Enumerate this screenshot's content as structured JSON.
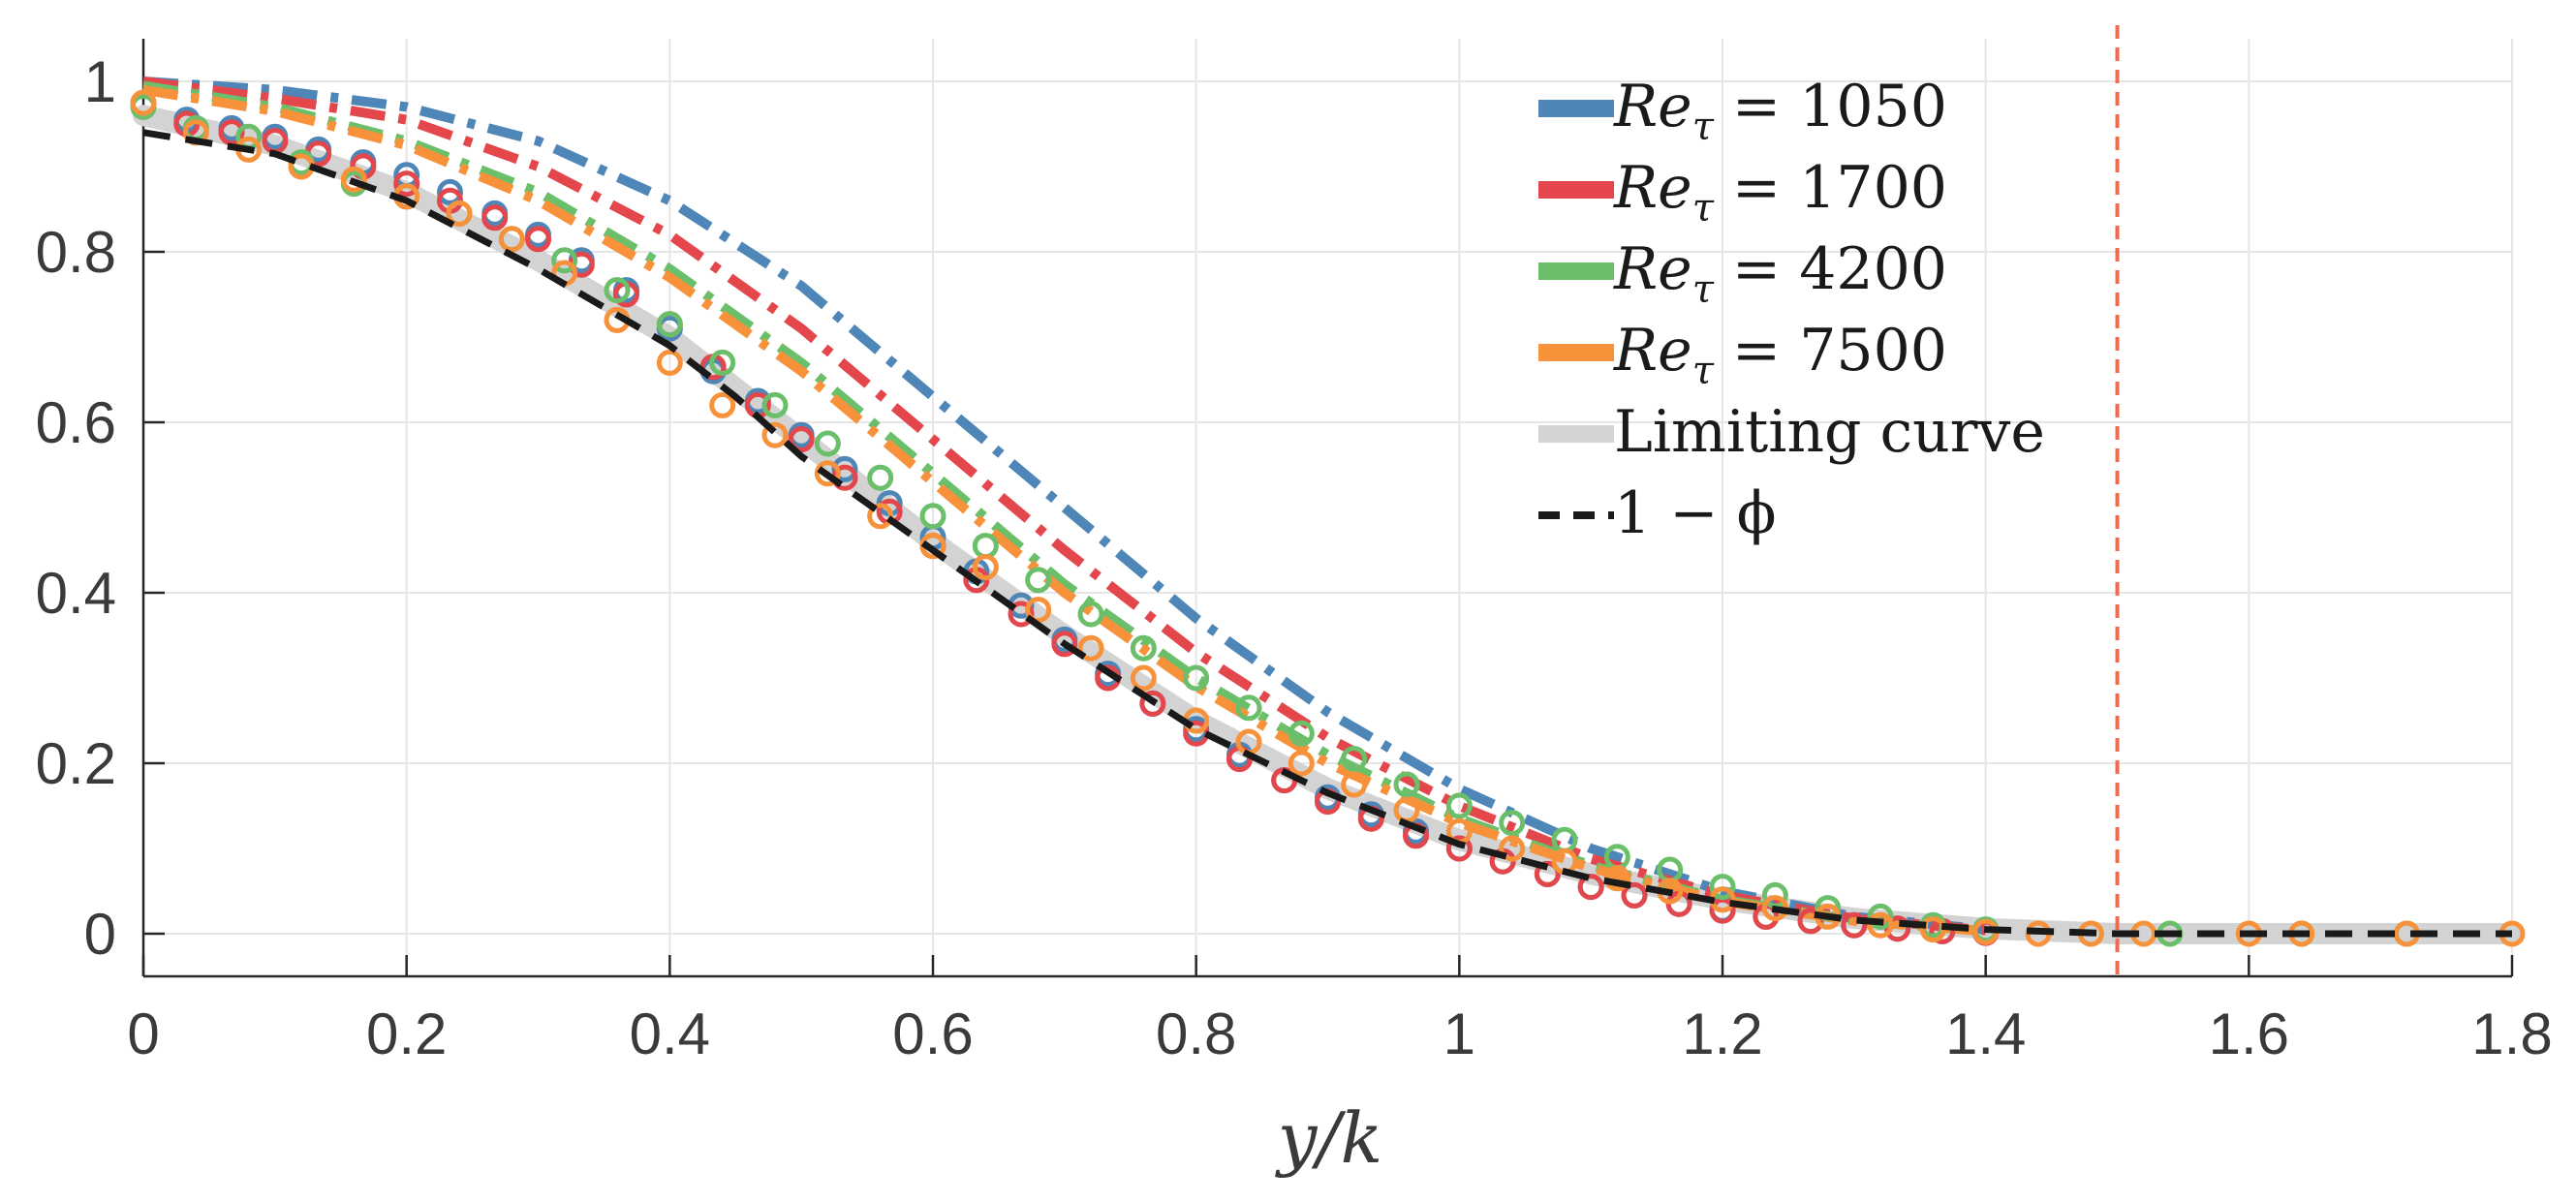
{
  "chart_data": {
    "type": "line",
    "xlabel": "y/k",
    "ylabel": "",
    "xlim": [
      0,
      1.8
    ],
    "ylim": [
      -0.05,
      1.05
    ],
    "xticks": [
      "0",
      "0.2",
      "0.4",
      "0.6",
      "0.8",
      "1",
      "1.2",
      "1.4",
      "1.6",
      "1.8"
    ],
    "yticks": [
      "0",
      "0.2",
      "0.4",
      "0.6",
      "0.8",
      "1"
    ],
    "xtick_values": [
      0,
      0.2,
      0.4,
      0.6,
      0.8,
      1.0,
      1.2,
      1.4,
      1.6,
      1.8
    ],
    "ytick_values": [
      0,
      0.2,
      0.4,
      0.6,
      0.8,
      1.0
    ],
    "grid": true,
    "legend_position": "top-right",
    "vertical_reference_line": {
      "x": 1.5,
      "color": "#f26b50",
      "style": "dashed"
    },
    "legend": [
      {
        "label_sym": "Re",
        "label_sub": "τ",
        "label_rest": " = 1050",
        "color": "#4f86b8",
        "style": "solid-thick"
      },
      {
        "label_sym": "Re",
        "label_sub": "τ",
        "label_rest": " = 1700",
        "color": "#e3474c",
        "style": "solid-thick"
      },
      {
        "label_sym": "Re",
        "label_sub": "τ",
        "label_rest": " = 4200",
        "color": "#6cbf6a",
        "style": "solid-thick"
      },
      {
        "label_sym": "Re",
        "label_sub": "τ",
        "label_rest": " = 7500",
        "color": "#f7923a",
        "style": "solid-thick"
      },
      {
        "label_sym": "",
        "label_sub": "",
        "label_rest": "Limiting curve",
        "color": "#d3d3d3",
        "style": "solid-thick"
      },
      {
        "label_sym": "",
        "label_sub": "",
        "label_rest": "1 − ϕ",
        "color": "#1a1a1a",
        "style": "dashed"
      }
    ],
    "series": [
      {
        "name": "Re_tau = 1050 (dash-dot)",
        "color": "#4f86b8",
        "style": "dashdot",
        "x": [
          0,
          0.1,
          0.2,
          0.3,
          0.4,
          0.5,
          0.6,
          0.7,
          0.8,
          0.9,
          1.0,
          1.1,
          1.2,
          1.3,
          1.4
        ],
        "y": [
          1.0,
          0.99,
          0.97,
          0.93,
          0.86,
          0.76,
          0.63,
          0.5,
          0.37,
          0.26,
          0.17,
          0.1,
          0.05,
          0.02,
          0.005
        ]
      },
      {
        "name": "Re_tau = 1700 (dash-dot)",
        "color": "#e3474c",
        "style": "dashdot",
        "x": [
          0,
          0.1,
          0.2,
          0.3,
          0.4,
          0.5,
          0.6,
          0.7,
          0.8,
          0.9,
          1.0,
          1.1,
          1.2,
          1.3,
          1.4
        ],
        "y": [
          1.0,
          0.98,
          0.955,
          0.9,
          0.82,
          0.71,
          0.58,
          0.45,
          0.33,
          0.23,
          0.15,
          0.088,
          0.045,
          0.018,
          0.004
        ]
      },
      {
        "name": "Re_tau = 4200 (dash-dot)",
        "color": "#6cbf6a",
        "style": "dashdot",
        "x": [
          0,
          0.1,
          0.2,
          0.3,
          0.4,
          0.5,
          0.6,
          0.7,
          0.8,
          0.9,
          1.0,
          1.1,
          1.2,
          1.3,
          1.4
        ],
        "y": [
          0.995,
          0.97,
          0.93,
          0.87,
          0.78,
          0.67,
          0.54,
          0.41,
          0.3,
          0.21,
          0.135,
          0.08,
          0.04,
          0.016,
          0.003
        ]
      },
      {
        "name": "Re_tau = 7500 (dash-dot)",
        "color": "#f7923a",
        "style": "dashdot",
        "x": [
          0,
          0.1,
          0.2,
          0.3,
          0.4,
          0.5,
          0.6,
          0.7,
          0.8,
          0.9,
          1.0,
          1.1,
          1.2,
          1.3,
          1.4
        ],
        "y": [
          0.99,
          0.965,
          0.925,
          0.86,
          0.77,
          0.66,
          0.53,
          0.4,
          0.29,
          0.2,
          0.13,
          0.077,
          0.038,
          0.015,
          0.003
        ]
      },
      {
        "name": "Limiting curve",
        "color": "#d3d3d3",
        "style": "solid-thick",
        "x": [
          0,
          0.1,
          0.2,
          0.3,
          0.4,
          0.45,
          0.5,
          0.6,
          0.7,
          0.8,
          0.9,
          1.0,
          1.1,
          1.2,
          1.3,
          1.4,
          1.5,
          1.6,
          1.8
        ],
        "y": [
          0.96,
          0.925,
          0.87,
          0.79,
          0.7,
          0.64,
          0.58,
          0.46,
          0.35,
          0.25,
          0.17,
          0.11,
          0.07,
          0.04,
          0.018,
          0.006,
          0.0,
          0.0,
          0.0
        ]
      },
      {
        "name": "1 - phi",
        "color": "#1a1a1a",
        "style": "dashed",
        "x": [
          0,
          0.1,
          0.2,
          0.3,
          0.4,
          0.45,
          0.5,
          0.6,
          0.7,
          0.8,
          0.9,
          1.0,
          1.1,
          1.2,
          1.3,
          1.4,
          1.5,
          1.6,
          1.8
        ],
        "y": [
          0.94,
          0.915,
          0.86,
          0.78,
          0.69,
          0.63,
          0.56,
          0.45,
          0.34,
          0.24,
          0.165,
          0.105,
          0.065,
          0.037,
          0.016,
          0.005,
          0.0,
          0.0,
          0.0
        ]
      },
      {
        "name": "Re_tau = 1050 (markers)",
        "color": "#4f86b8",
        "style": "markers",
        "x": [
          0.033,
          0.067,
          0.1,
          0.133,
          0.167,
          0.2,
          0.233,
          0.267,
          0.3,
          0.333,
          0.367,
          0.4,
          0.433,
          0.467,
          0.5,
          0.533,
          0.567,
          0.6,
          0.633,
          0.667,
          0.7,
          0.733,
          0.767,
          0.8,
          0.833,
          0.867,
          0.9,
          0.933,
          0.967,
          1.0,
          1.033,
          1.067,
          1.1,
          1.133,
          1.167,
          1.2,
          1.233,
          1.267,
          1.3,
          1.333,
          1.367,
          1.4
        ],
        "y": [
          0.955,
          0.945,
          0.935,
          0.92,
          0.905,
          0.89,
          0.87,
          0.845,
          0.82,
          0.79,
          0.755,
          0.71,
          0.66,
          0.625,
          0.585,
          0.545,
          0.505,
          0.465,
          0.425,
          0.385,
          0.345,
          0.305,
          0.27,
          0.24,
          0.21,
          0.18,
          0.16,
          0.14,
          0.12,
          0.1,
          0.085,
          0.07,
          0.055,
          0.045,
          0.035,
          0.028,
          0.02,
          0.015,
          0.01,
          0.006,
          0.003,
          0.001
        ]
      },
      {
        "name": "Re_tau = 1700 (markers)",
        "color": "#e3474c",
        "style": "markers",
        "x": [
          0.033,
          0.067,
          0.1,
          0.133,
          0.167,
          0.2,
          0.233,
          0.267,
          0.3,
          0.333,
          0.367,
          0.4,
          0.433,
          0.467,
          0.5,
          0.533,
          0.567,
          0.6,
          0.633,
          0.667,
          0.7,
          0.733,
          0.767,
          0.8,
          0.833,
          0.867,
          0.9,
          0.933,
          0.967,
          1.0,
          1.033,
          1.067,
          1.1,
          1.133,
          1.167,
          1.2,
          1.233,
          1.267,
          1.3,
          1.333,
          1.367,
          1.4
        ],
        "y": [
          0.95,
          0.94,
          0.93,
          0.915,
          0.9,
          0.88,
          0.86,
          0.84,
          0.815,
          0.785,
          0.75,
          0.715,
          0.665,
          0.62,
          0.58,
          0.535,
          0.495,
          0.455,
          0.415,
          0.375,
          0.34,
          0.3,
          0.27,
          0.235,
          0.205,
          0.18,
          0.155,
          0.135,
          0.115,
          0.1,
          0.085,
          0.07,
          0.055,
          0.045,
          0.035,
          0.027,
          0.02,
          0.015,
          0.01,
          0.006,
          0.003,
          0.001
        ]
      },
      {
        "name": "Re_tau = 4200 (markers)",
        "color": "#6cbf6a",
        "style": "markers",
        "x": [
          0.0,
          0.04,
          0.08,
          0.12,
          0.16,
          0.2,
          0.24,
          0.28,
          0.32,
          0.36,
          0.4,
          0.44,
          0.48,
          0.52,
          0.56,
          0.6,
          0.64,
          0.68,
          0.72,
          0.76,
          0.8,
          0.84,
          0.88,
          0.92,
          0.96,
          1.0,
          1.04,
          1.08,
          1.12,
          1.16,
          1.2,
          1.24,
          1.28,
          1.32,
          1.36,
          1.4,
          1.48,
          1.54,
          1.64,
          1.72
        ],
        "y": [
          0.97,
          0.945,
          0.935,
          0.905,
          0.88,
          0.865,
          0.845,
          0.815,
          0.79,
          0.755,
          0.715,
          0.67,
          0.62,
          0.575,
          0.535,
          0.49,
          0.455,
          0.415,
          0.375,
          0.335,
          0.3,
          0.265,
          0.235,
          0.205,
          0.175,
          0.15,
          0.13,
          0.11,
          0.09,
          0.075,
          0.055,
          0.045,
          0.03,
          0.02,
          0.01,
          0.005,
          0.0,
          0.0,
          0.0,
          0.0
        ]
      },
      {
        "name": "Re_tau = 7500 (markers)",
        "color": "#f7923a",
        "style": "markers",
        "x": [
          0.0,
          0.04,
          0.08,
          0.12,
          0.16,
          0.2,
          0.24,
          0.28,
          0.32,
          0.36,
          0.4,
          0.44,
          0.48,
          0.52,
          0.56,
          0.6,
          0.64,
          0.68,
          0.72,
          0.76,
          0.8,
          0.84,
          0.88,
          0.92,
          0.96,
          1.0,
          1.04,
          1.08,
          1.12,
          1.16,
          1.2,
          1.24,
          1.28,
          1.32,
          1.36,
          1.4,
          1.44,
          1.48,
          1.52,
          1.6,
          1.64,
          1.72,
          1.8
        ],
        "y": [
          0.975,
          0.94,
          0.92,
          0.9,
          0.885,
          0.865,
          0.845,
          0.815,
          0.775,
          0.72,
          0.67,
          0.62,
          0.585,
          0.54,
          0.49,
          0.455,
          0.43,
          0.38,
          0.335,
          0.3,
          0.25,
          0.225,
          0.2,
          0.175,
          0.145,
          0.12,
          0.1,
          0.085,
          0.065,
          0.05,
          0.04,
          0.03,
          0.02,
          0.01,
          0.005,
          0.002,
          0.0,
          0.0,
          0.0,
          0.0,
          0.0,
          0.0,
          0.0
        ]
      }
    ]
  }
}
